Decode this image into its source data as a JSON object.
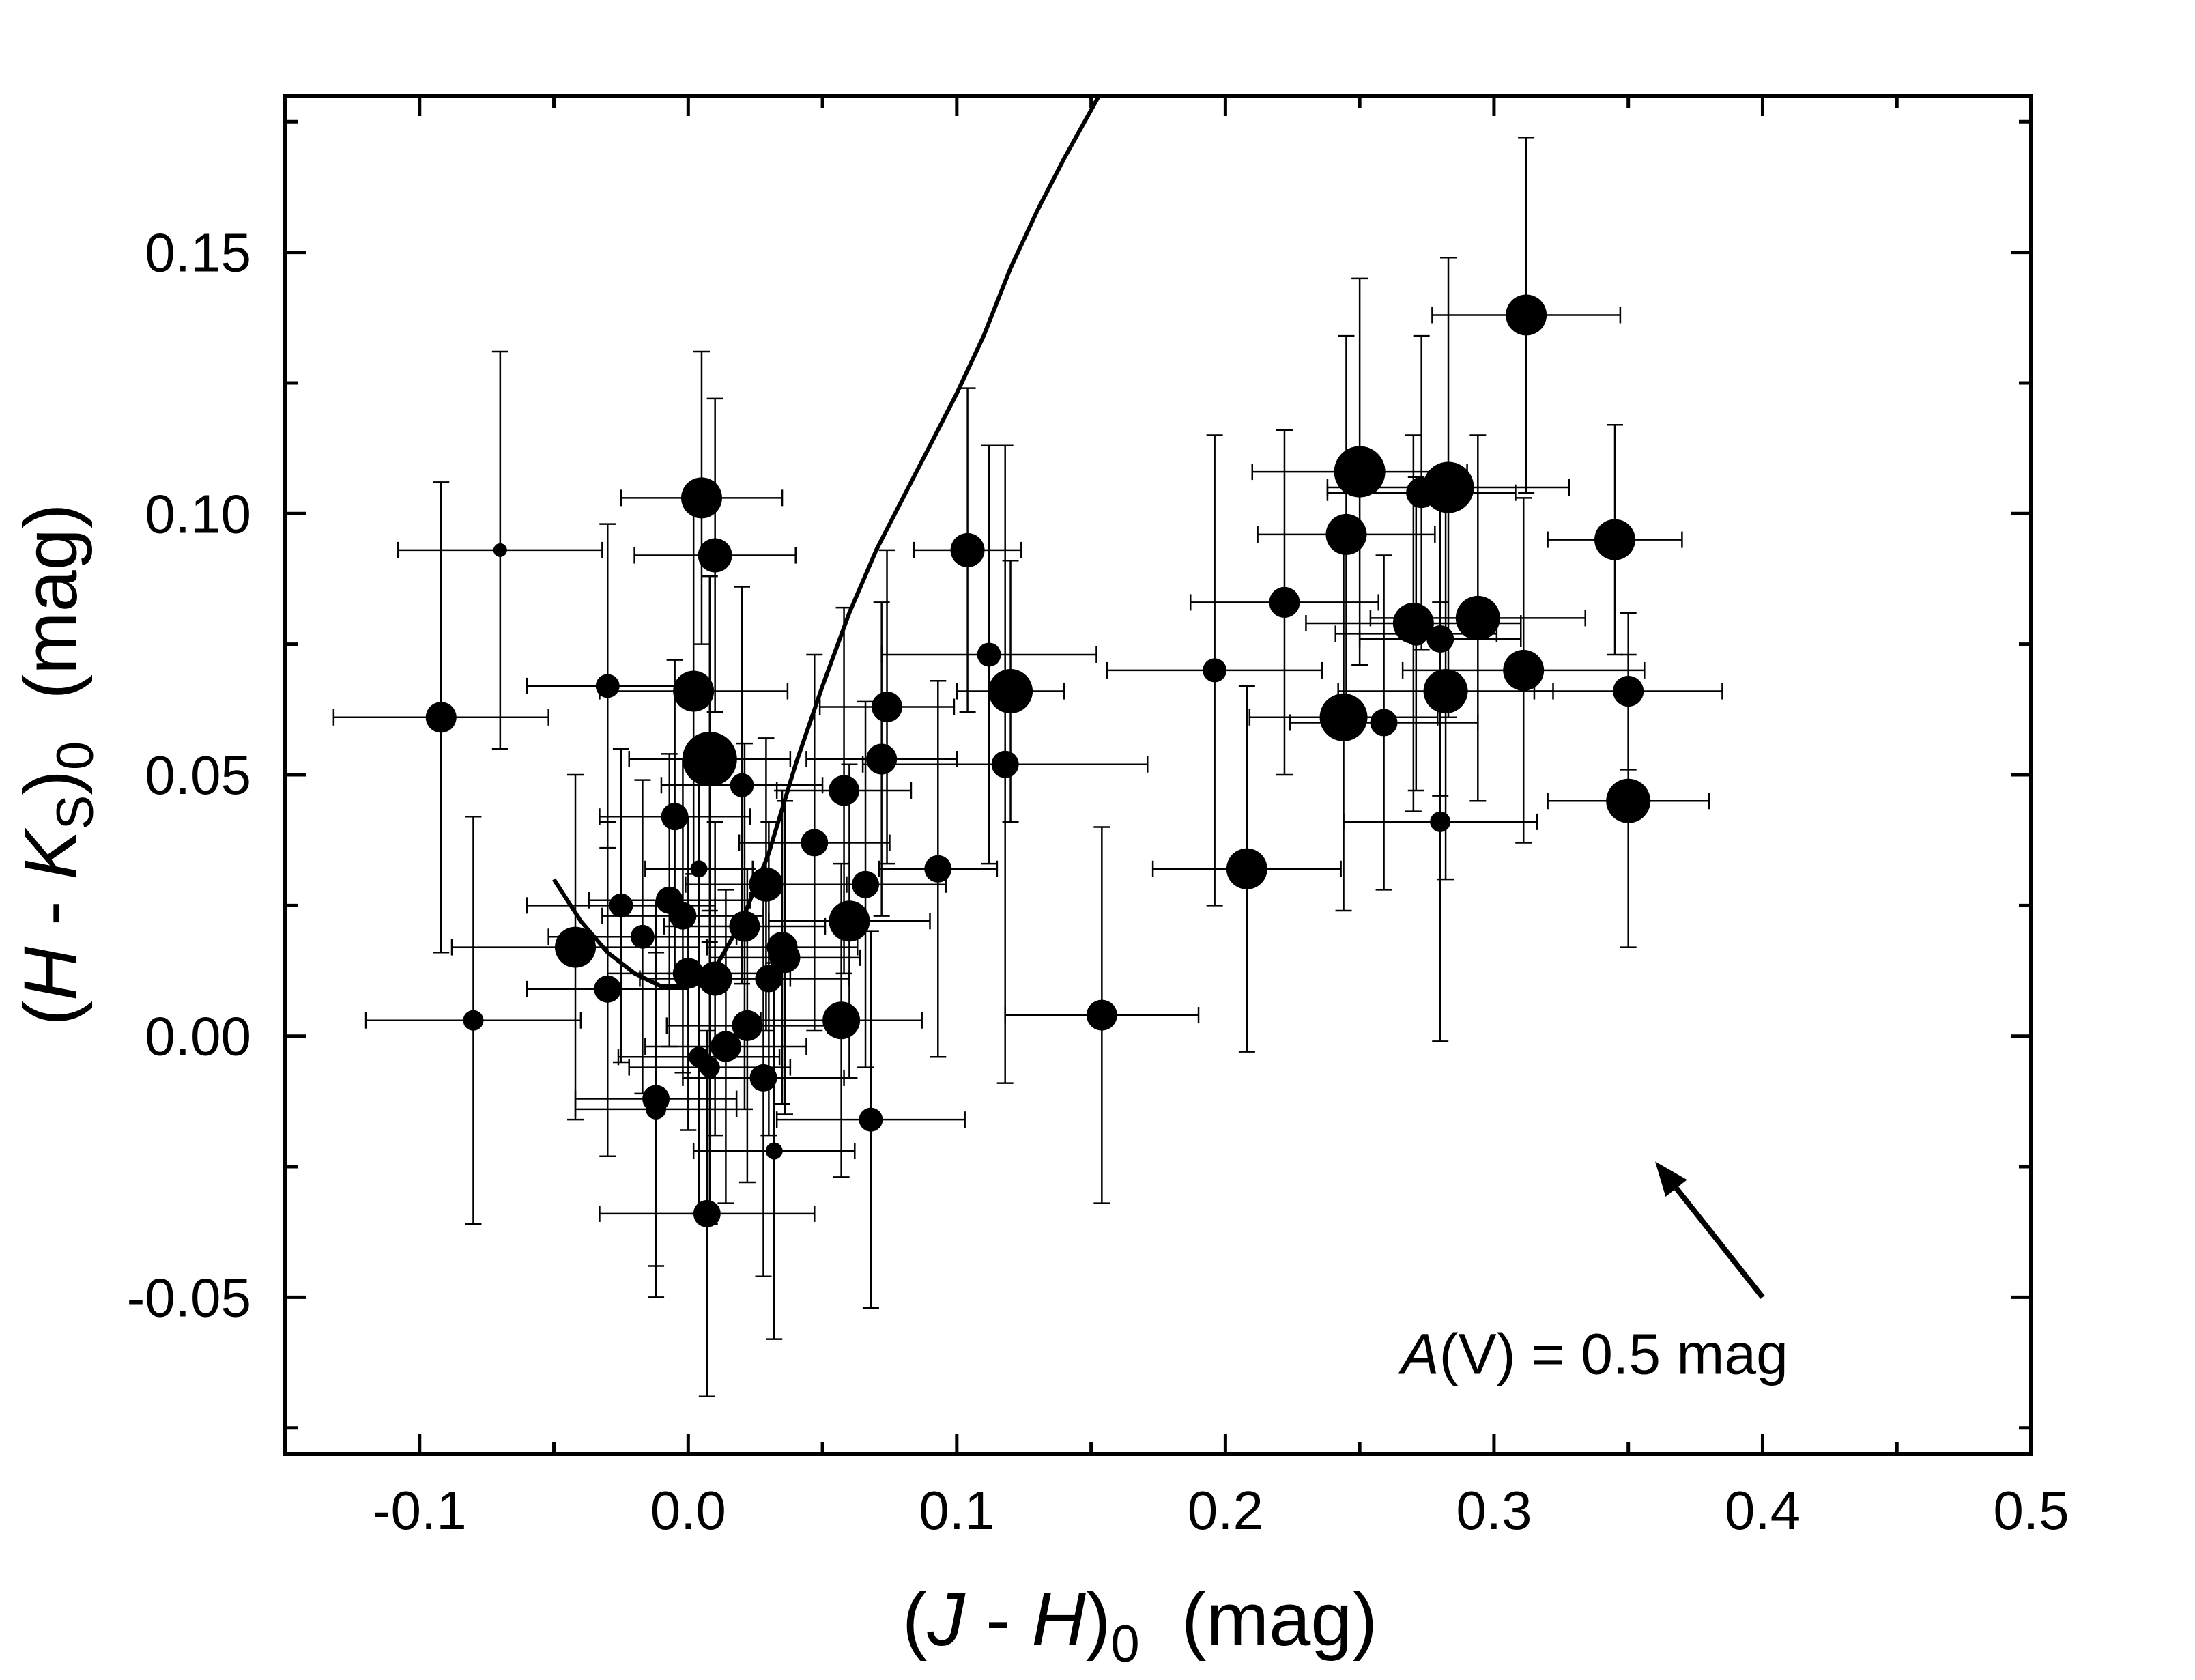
{
  "chart_data": {
    "type": "scatter",
    "title": "",
    "xlabel": {
      "prefix": "(",
      "var1": "J",
      "mid": " - ",
      "var2": "H",
      "close": ")",
      "sub": "0",
      "unit": "  (mag)"
    },
    "ylabel": {
      "prefix": "(",
      "var1": "H",
      "mid": " - ",
      "var2": "K",
      "var2_sub": "S",
      "close": ")",
      "sub": "0",
      "unit": "  (mag)"
    },
    "xlim": [
      -0.15,
      0.5
    ],
    "ylim": [
      -0.08,
      0.18
    ],
    "x_ticks": [
      {
        "value": -0.1,
        "label": "-0.1"
      },
      {
        "value": 0.0,
        "label": "0.0"
      },
      {
        "value": 0.1,
        "label": "0.1"
      },
      {
        "value": 0.2,
        "label": "0.2"
      },
      {
        "value": 0.3,
        "label": "0.3"
      },
      {
        "value": 0.4,
        "label": "0.4"
      },
      {
        "value": 0.5,
        "label": "0.5"
      }
    ],
    "y_ticks": [
      {
        "value": -0.05,
        "label": "-0.05"
      },
      {
        "value": 0.0,
        "label": "0.00"
      },
      {
        "value": 0.05,
        "label": "0.05"
      },
      {
        "value": 0.1,
        "label": "0.10"
      },
      {
        "value": 0.15,
        "label": "0.15"
      }
    ],
    "x_minor_step": 0.05,
    "y_minor_step": 0.025,
    "grid": false,
    "points": [
      {
        "x": -0.092,
        "y": 0.061,
        "xerr": 0.04,
        "yerr": 0.045,
        "size": 9
      },
      {
        "x": -0.07,
        "y": 0.093,
        "xerr": 0.038,
        "yerr": 0.038,
        "size": 4
      },
      {
        "x": -0.08,
        "y": 0.003,
        "xerr": 0.04,
        "yerr": 0.039,
        "size": 6
      },
      {
        "x": -0.042,
        "y": 0.017,
        "xerr": 0.046,
        "yerr": 0.033,
        "size": 12
      },
      {
        "x": -0.03,
        "y": 0.067,
        "xerr": 0.03,
        "yerr": 0.031,
        "size": 7
      },
      {
        "x": -0.03,
        "y": 0.009,
        "xerr": 0.03,
        "yerr": 0.032,
        "size": 8
      },
      {
        "x": -0.025,
        "y": 0.025,
        "xerr": 0.035,
        "yerr": 0.03,
        "size": 7
      },
      {
        "x": -0.017,
        "y": 0.019,
        "xerr": 0.035,
        "yerr": 0.03,
        "size": 7
      },
      {
        "x": -0.012,
        "y": -0.012,
        "xerr": 0.03,
        "yerr": 0.038,
        "size": 8
      },
      {
        "x": -0.012,
        "y": -0.014,
        "xerr": 0.03,
        "yerr": 0.03,
        "size": 6
      },
      {
        "x": -0.007,
        "y": 0.026,
        "xerr": 0.03,
        "yerr": 0.028,
        "size": 8
      },
      {
        "x": -0.005,
        "y": 0.042,
        "xerr": 0.028,
        "yerr": 0.03,
        "size": 8
      },
      {
        "x": -0.002,
        "y": 0.023,
        "xerr": 0.03,
        "yerr": 0.03,
        "size": 8
      },
      {
        "x": 0.0,
        "y": 0.012,
        "xerr": 0.03,
        "yerr": 0.03,
        "size": 9
      },
      {
        "x": 0.002,
        "y": 0.066,
        "xerr": 0.035,
        "yerr": 0.035,
        "size": 12
      },
      {
        "x": 0.004,
        "y": 0.032,
        "xerr": 0.02,
        "yerr": 0.02,
        "size": 5
      },
      {
        "x": 0.004,
        "y": -0.004,
        "xerr": 0.03,
        "yerr": 0.03,
        "size": 6
      },
      {
        "x": 0.005,
        "y": 0.103,
        "xerr": 0.03,
        "yerr": 0.028,
        "size": 12
      },
      {
        "x": 0.007,
        "y": -0.034,
        "xerr": 0.04,
        "yerr": 0.035,
        "size": 8
      },
      {
        "x": 0.008,
        "y": 0.053,
        "xerr": 0.03,
        "yerr": 0.035,
        "size": 16
      },
      {
        "x": 0.008,
        "y": -0.006,
        "xerr": 0.03,
        "yerr": 0.03,
        "size": 6
      },
      {
        "x": 0.01,
        "y": 0.092,
        "xerr": 0.03,
        "yerr": 0.03,
        "size": 10
      },
      {
        "x": 0.01,
        "y": 0.011,
        "xerr": 0.028,
        "yerr": 0.03,
        "size": 10
      },
      {
        "x": 0.014,
        "y": -0.002,
        "xerr": 0.03,
        "yerr": 0.03,
        "size": 9
      },
      {
        "x": 0.02,
        "y": 0.048,
        "xerr": 0.03,
        "yerr": 0.038,
        "size": 7
      },
      {
        "x": 0.021,
        "y": 0.021,
        "xerr": 0.03,
        "yerr": 0.035,
        "size": 9
      },
      {
        "x": 0.022,
        "y": 0.002,
        "xerr": 0.03,
        "yerr": 0.03,
        "size": 9
      },
      {
        "x": 0.028,
        "y": -0.008,
        "xerr": 0.03,
        "yerr": 0.038,
        "size": 8
      },
      {
        "x": 0.029,
        "y": 0.029,
        "xerr": 0.03,
        "yerr": 0.028,
        "size": 10
      },
      {
        "x": 0.03,
        "y": 0.011,
        "xerr": 0.03,
        "yerr": 0.03,
        "size": 8
      },
      {
        "x": 0.032,
        "y": -0.022,
        "xerr": 0.03,
        "yerr": 0.036,
        "size": 5
      },
      {
        "x": 0.035,
        "y": 0.017,
        "xerr": 0.028,
        "yerr": 0.03,
        "size": 9
      },
      {
        "x": 0.036,
        "y": 0.015,
        "xerr": 0.028,
        "yerr": 0.03,
        "size": 9
      },
      {
        "x": 0.047,
        "y": 0.037,
        "xerr": 0.028,
        "yerr": 0.036,
        "size": 8
      },
      {
        "x": 0.057,
        "y": 0.003,
        "xerr": 0.03,
        "yerr": 0.03,
        "size": 11
      },
      {
        "x": 0.058,
        "y": 0.047,
        "xerr": 0.025,
        "yerr": 0.035,
        "size": 9
      },
      {
        "x": 0.06,
        "y": 0.022,
        "xerr": 0.03,
        "yerr": 0.03,
        "size": 12
      },
      {
        "x": 0.066,
        "y": 0.029,
        "xerr": 0.03,
        "yerr": 0.035,
        "size": 8
      },
      {
        "x": 0.068,
        "y": -0.016,
        "xerr": 0.035,
        "yerr": 0.036,
        "size": 7
      },
      {
        "x": 0.072,
        "y": 0.053,
        "xerr": 0.028,
        "yerr": 0.03,
        "size": 9
      },
      {
        "x": 0.074,
        "y": 0.063,
        "xerr": 0.025,
        "yerr": 0.03,
        "size": 9
      },
      {
        "x": 0.093,
        "y": 0.032,
        "xerr": 0.022,
        "yerr": 0.036,
        "size": 8
      },
      {
        "x": 0.104,
        "y": 0.093,
        "xerr": 0.02,
        "yerr": 0.031,
        "size": 10
      },
      {
        "x": 0.112,
        "y": 0.073,
        "xerr": 0.04,
        "yerr": 0.04,
        "size": 7
      },
      {
        "x": 0.118,
        "y": 0.052,
        "xerr": 0.053,
        "yerr": 0.061,
        "size": 8
      },
      {
        "x": 0.12,
        "y": 0.066,
        "xerr": 0.02,
        "yerr": 0.025,
        "size": 13
      },
      {
        "x": 0.154,
        "y": 0.004,
        "xerr": 0.036,
        "yerr": 0.036,
        "size": 9
      },
      {
        "x": 0.196,
        "y": 0.07,
        "xerr": 0.04,
        "yerr": 0.045,
        "size": 7
      },
      {
        "x": 0.208,
        "y": 0.032,
        "xerr": 0.035,
        "yerr": 0.035,
        "size": 12
      },
      {
        "x": 0.222,
        "y": 0.083,
        "xerr": 0.035,
        "yerr": 0.033,
        "size": 9
      },
      {
        "x": 0.244,
        "y": 0.061,
        "xerr": 0.035,
        "yerr": 0.037,
        "size": 14
      },
      {
        "x": 0.245,
        "y": 0.096,
        "xerr": 0.033,
        "yerr": 0.038,
        "size": 12
      },
      {
        "x": 0.25,
        "y": 0.108,
        "xerr": 0.04,
        "yerr": 0.037,
        "size": 15
      },
      {
        "x": 0.259,
        "y": 0.06,
        "xerr": 0.035,
        "yerr": 0.032,
        "size": 8
      },
      {
        "x": 0.27,
        "y": 0.079,
        "xerr": 0.04,
        "yerr": 0.036,
        "size": 12
      },
      {
        "x": 0.271,
        "y": 0.077,
        "xerr": 0.03,
        "yerr": 0.03,
        "size": 7
      },
      {
        "x": 0.273,
        "y": 0.104,
        "xerr": 0.035,
        "yerr": 0.03,
        "size": 9
      },
      {
        "x": 0.28,
        "y": 0.076,
        "xerr": 0.03,
        "yerr": 0.03,
        "size": 8
      },
      {
        "x": 0.28,
        "y": 0.041,
        "xerr": 0.036,
        "yerr": 0.042,
        "size": 6
      },
      {
        "x": 0.282,
        "y": 0.066,
        "xerr": 0.04,
        "yerr": 0.036,
        "size": 13
      },
      {
        "x": 0.283,
        "y": 0.105,
        "xerr": 0.045,
        "yerr": 0.044,
        "size": 15
      },
      {
        "x": 0.294,
        "y": 0.08,
        "xerr": 0.04,
        "yerr": 0.035,
        "size": 13
      },
      {
        "x": 0.311,
        "y": 0.07,
        "xerr": 0.045,
        "yerr": 0.033,
        "size": 12
      },
      {
        "x": 0.312,
        "y": 0.138,
        "xerr": 0.035,
        "yerr": 0.034,
        "size": 12
      },
      {
        "x": 0.345,
        "y": 0.095,
        "xerr": 0.025,
        "yerr": 0.022,
        "size": 12
      },
      {
        "x": 0.35,
        "y": 0.066,
        "xerr": 0.035,
        "yerr": 0.015,
        "size": 9
      },
      {
        "x": 0.35,
        "y": 0.045,
        "xerr": 0.03,
        "yerr": 0.028,
        "size": 13
      }
    ],
    "curve": {
      "points": [
        [
          -0.05,
          0.03
        ],
        [
          -0.04,
          0.022
        ],
        [
          -0.03,
          0.016
        ],
        [
          -0.02,
          0.012
        ],
        [
          -0.01,
          0.0095
        ],
        [
          0.0,
          0.0095
        ],
        [
          0.01,
          0.013
        ],
        [
          0.02,
          0.022
        ],
        [
          0.03,
          0.035
        ],
        [
          0.04,
          0.052
        ],
        [
          0.05,
          0.067
        ],
        [
          0.06,
          0.081
        ],
        [
          0.07,
          0.093
        ],
        [
          0.08,
          0.103
        ],
        [
          0.09,
          0.113
        ],
        [
          0.1,
          0.123
        ],
        [
          0.11,
          0.134
        ],
        [
          0.12,
          0.147
        ],
        [
          0.13,
          0.158
        ],
        [
          0.14,
          0.168
        ],
        [
          0.153,
          0.18
        ]
      ]
    },
    "reddening_vector": {
      "tail": [
        0.4,
        -0.05
      ],
      "head": [
        0.36,
        -0.024
      ],
      "label_italic": "A",
      "label_rest": "(V) = 0.5 mag",
      "label_anchor": [
        0.41,
        -0.061
      ]
    }
  }
}
